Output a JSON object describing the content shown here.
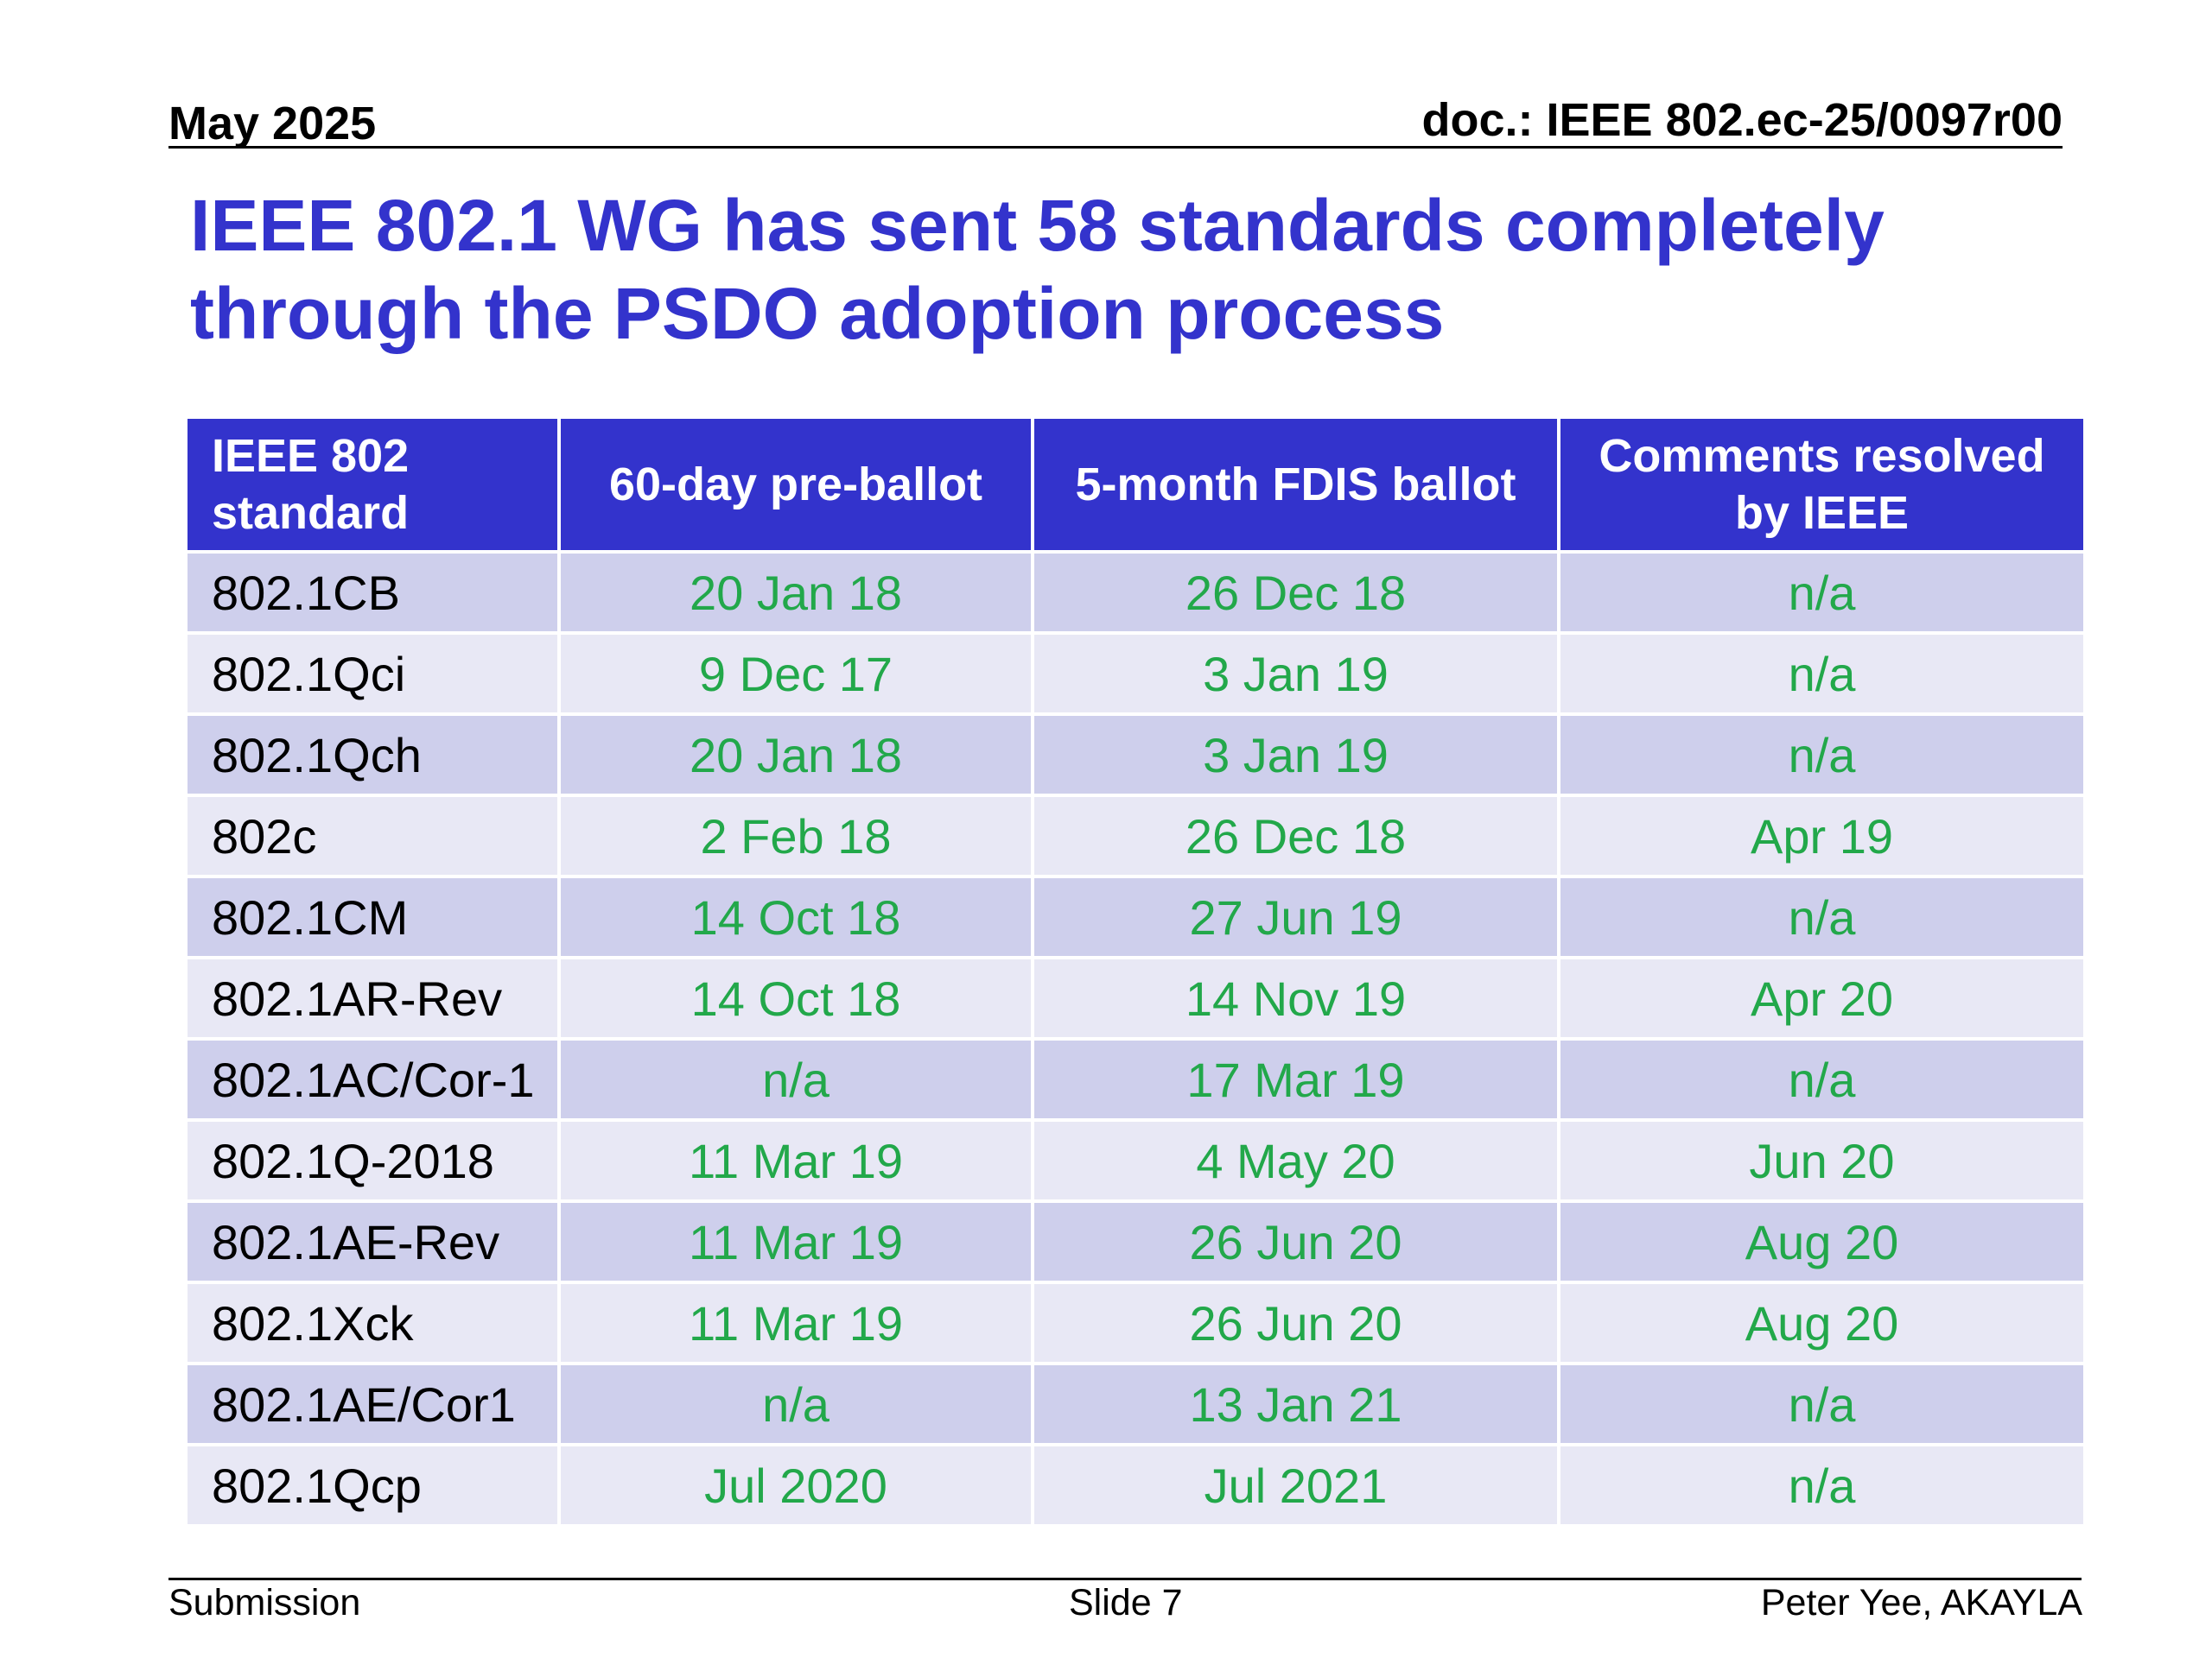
{
  "header": {
    "date": "May 2025",
    "doc": "doc.: IEEE 802.ec-25/0097r00"
  },
  "title": "IEEE 802.1 WG has sent 58 standards completely through the PSDO adoption process",
  "table": {
    "headers": [
      "IEEE 802 standard",
      "60-day pre-ballot",
      "5-month FDIS ballot",
      "Comments resolved by IEEE"
    ],
    "rows": [
      [
        "802.1CB",
        "20 Jan 18",
        "26 Dec 18",
        "n/a"
      ],
      [
        "802.1Qci",
        "9 Dec 17",
        "3 Jan 19",
        "n/a"
      ],
      [
        "802.1Qch",
        "20 Jan 18",
        "3 Jan 19",
        "n/a"
      ],
      [
        "802c",
        "2 Feb 18",
        "26 Dec 18",
        "Apr 19"
      ],
      [
        "802.1CM",
        "14 Oct 18",
        "27 Jun 19",
        "n/a"
      ],
      [
        "802.1AR-Rev",
        "14 Oct 18",
        "14 Nov 19",
        "Apr 20"
      ],
      [
        "802.1AC/Cor-1",
        "n/a",
        "17 Mar 19",
        "n/a"
      ],
      [
        "802.1Q-2018",
        "11 Mar 19",
        "4 May 20",
        "Jun 20"
      ],
      [
        "802.1AE-Rev",
        "11 Mar 19",
        "26 Jun 20",
        "Aug 20"
      ],
      [
        "802.1Xck",
        "11 Mar 19",
        "26 Jun 20",
        "Aug 20"
      ],
      [
        "802.1AE/Cor1",
        "n/a",
        "13 Jan 21",
        "n/a"
      ],
      [
        "802.1Qcp",
        "Jul 2020",
        "Jul 2021",
        "n/a"
      ]
    ]
  },
  "footer": {
    "left": "Submission",
    "center": "Slide 7",
    "right": "Peter Yee, AKAYLA"
  },
  "colors": {
    "title": "#3333cc",
    "header_bg": "#3333cc",
    "row_dark": "#cecfec",
    "row_light": "#e8e8f5",
    "value_text": "#22a84a"
  }
}
